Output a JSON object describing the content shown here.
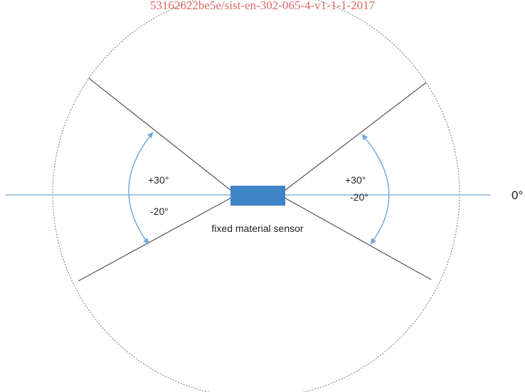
{
  "watermark": "53162622be5e/sist-en-302-065-4-v1-1-1-2017",
  "sensor_label": "fixed material sensor",
  "axis_label": "0°",
  "left_angles": {
    "up": "+30°",
    "down": "-20°"
  },
  "right_angles": {
    "up": "+30°",
    "down": "-20°"
  },
  "colors": {
    "axis": "#6fa8dc",
    "sensor": "#3d85c6",
    "arrow": "#6fa8dc",
    "limit_lines": "#555555",
    "circle": "#777777",
    "watermark": "#e06666"
  }
}
